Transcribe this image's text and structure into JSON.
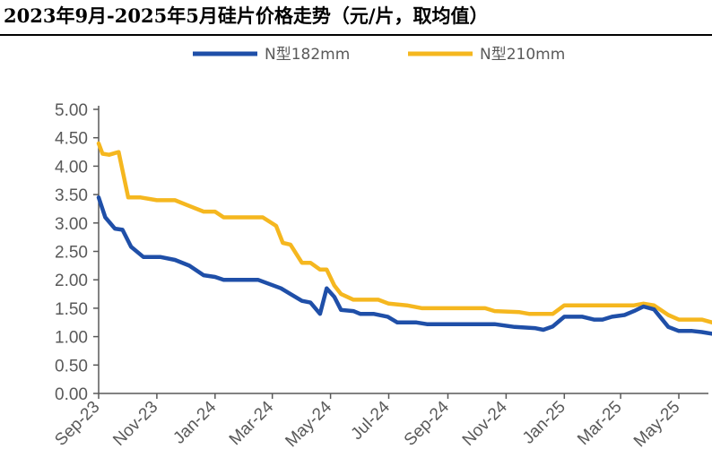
{
  "title": "2023年9月-2025年5月硅片价格走势（元/片，取均值）",
  "colors": {
    "n182": "#1f4fa8",
    "n210": "#f5b71f",
    "axis": "#595959",
    "text": "#595959"
  },
  "chart_data": {
    "type": "line",
    "title": "2023年9月-2025年5月硅片价格走势（元/片，取均值）",
    "xlabel": "",
    "ylabel": "",
    "ylim": [
      0,
      5
    ],
    "xlim": [
      "2023-09",
      "2025-06"
    ],
    "y_ticks": [
      "0.00",
      "0.50",
      "1.00",
      "1.50",
      "2.00",
      "2.50",
      "3.00",
      "3.50",
      "4.00",
      "4.50",
      "5.00"
    ],
    "x_ticks": [
      {
        "label": "Sep-23",
        "date": "2023-09"
      },
      {
        "label": "Nov-23",
        "date": "2023-11"
      },
      {
        "label": "Jan-24",
        "date": "2024-01"
      },
      {
        "label": "Mar-24",
        "date": "2024-03"
      },
      {
        "label": "May-24",
        "date": "2024-05"
      },
      {
        "label": "Jul-24",
        "date": "2024-07"
      },
      {
        "label": "Sep-24",
        "date": "2024-09"
      },
      {
        "label": "Nov-24",
        "date": "2024-11"
      },
      {
        "label": "Jan-25",
        "date": "2025-01"
      },
      {
        "label": "Mar-25",
        "date": "2025-03"
      },
      {
        "label": "May-25",
        "date": "2025-05"
      }
    ],
    "grid": false,
    "legend_position": "top-center",
    "series": [
      {
        "name": "N型182mm",
        "color": "#1f4fa8",
        "points": [
          [
            "2023-09-01",
            3.45
          ],
          [
            "2023-09-08",
            3.1
          ],
          [
            "2023-09-18",
            2.9
          ],
          [
            "2023-09-26",
            2.88
          ],
          [
            "2023-10-05",
            2.58
          ],
          [
            "2023-10-18",
            2.4
          ],
          [
            "2023-11-05",
            2.4
          ],
          [
            "2023-11-20",
            2.35
          ],
          [
            "2023-12-05",
            2.25
          ],
          [
            "2023-12-20",
            2.08
          ],
          [
            "2024-01-01",
            2.05
          ],
          [
            "2024-01-10",
            2.0
          ],
          [
            "2024-02-15",
            2.0
          ],
          [
            "2024-02-28",
            1.92
          ],
          [
            "2024-03-10",
            1.85
          ],
          [
            "2024-03-20",
            1.75
          ],
          [
            "2024-04-01",
            1.63
          ],
          [
            "2024-04-10",
            1.6
          ],
          [
            "2024-04-20",
            1.4
          ],
          [
            "2024-04-27",
            1.85
          ],
          [
            "2024-05-05",
            1.7
          ],
          [
            "2024-05-12",
            1.47
          ],
          [
            "2024-05-25",
            1.45
          ],
          [
            "2024-06-01",
            1.4
          ],
          [
            "2024-06-15",
            1.4
          ],
          [
            "2024-06-30",
            1.35
          ],
          [
            "2024-07-10",
            1.25
          ],
          [
            "2024-07-30",
            1.25
          ],
          [
            "2024-08-10",
            1.22
          ],
          [
            "2024-10-20",
            1.22
          ],
          [
            "2024-11-10",
            1.17
          ],
          [
            "2024-12-01",
            1.15
          ],
          [
            "2024-12-10",
            1.12
          ],
          [
            "2024-12-20",
            1.18
          ],
          [
            "2025-01-01",
            1.35
          ],
          [
            "2025-01-20",
            1.35
          ],
          [
            "2025-02-01",
            1.3
          ],
          [
            "2025-02-10",
            1.3
          ],
          [
            "2025-02-20",
            1.35
          ],
          [
            "2025-03-05",
            1.38
          ],
          [
            "2025-03-15",
            1.45
          ],
          [
            "2025-03-25",
            1.53
          ],
          [
            "2025-04-05",
            1.48
          ],
          [
            "2025-04-20",
            1.17
          ],
          [
            "2025-05-01",
            1.1
          ],
          [
            "2025-05-15",
            1.1
          ],
          [
            "2025-05-25",
            1.08
          ],
          [
            "2025-06-05",
            1.05
          ],
          [
            "2025-06-15",
            1.0
          ]
        ]
      },
      {
        "name": "N型210mm",
        "color": "#f5b71f",
        "points": [
          [
            "2023-09-01",
            4.4
          ],
          [
            "2023-09-05",
            4.22
          ],
          [
            "2023-09-12",
            4.2
          ],
          [
            "2023-09-22",
            4.25
          ],
          [
            "2023-10-02",
            3.45
          ],
          [
            "2023-10-15",
            3.45
          ],
          [
            "2023-11-01",
            3.4
          ],
          [
            "2023-11-20",
            3.4
          ],
          [
            "2023-12-05",
            3.3
          ],
          [
            "2023-12-20",
            3.2
          ],
          [
            "2024-01-01",
            3.2
          ],
          [
            "2024-01-10",
            3.1
          ],
          [
            "2024-02-20",
            3.1
          ],
          [
            "2024-03-05",
            2.95
          ],
          [
            "2024-03-12",
            2.65
          ],
          [
            "2024-03-20",
            2.62
          ],
          [
            "2024-04-01",
            2.3
          ],
          [
            "2024-04-10",
            2.3
          ],
          [
            "2024-04-20",
            2.18
          ],
          [
            "2024-04-27",
            2.18
          ],
          [
            "2024-05-05",
            1.9
          ],
          [
            "2024-05-12",
            1.75
          ],
          [
            "2024-05-25",
            1.65
          ],
          [
            "2024-06-20",
            1.65
          ],
          [
            "2024-07-01",
            1.58
          ],
          [
            "2024-07-20",
            1.55
          ],
          [
            "2024-08-05",
            1.5
          ],
          [
            "2024-10-10",
            1.5
          ],
          [
            "2024-10-20",
            1.45
          ],
          [
            "2024-11-15",
            1.43
          ],
          [
            "2024-11-25",
            1.4
          ],
          [
            "2024-12-20",
            1.4
          ],
          [
            "2025-01-01",
            1.55
          ],
          [
            "2025-03-15",
            1.55
          ],
          [
            "2025-03-25",
            1.58
          ],
          [
            "2025-04-05",
            1.55
          ],
          [
            "2025-04-20",
            1.38
          ],
          [
            "2025-05-01",
            1.3
          ],
          [
            "2025-05-25",
            1.3
          ],
          [
            "2025-06-05",
            1.25
          ],
          [
            "2025-06-15",
            1.2
          ]
        ]
      }
    ]
  }
}
